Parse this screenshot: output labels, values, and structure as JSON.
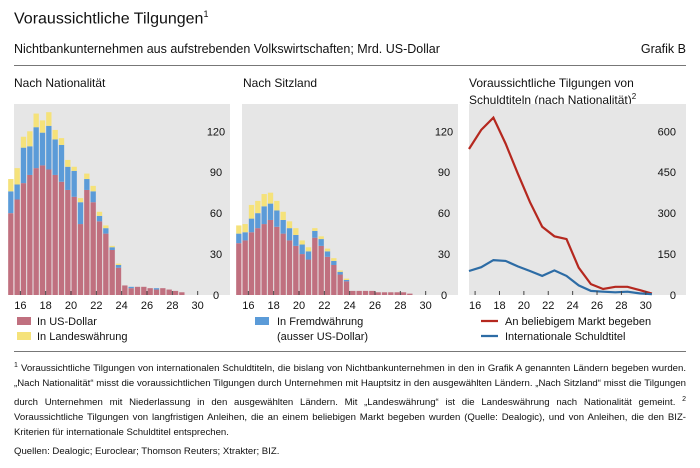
{
  "header": {
    "title": "Voraussichtliche Tilgungen",
    "title_sup": "1",
    "subtitle": "Nichtbankunternehmen aus aufstrebenden Volkswirtschaften; Mrd. US-Dollar",
    "grafik": "Grafik B"
  },
  "footnote": {
    "mark1": "1",
    "text1": "Voraussichtliche Tilgungen von internationalen Schuldtiteln, die bislang von Nichtbankunternehmen in den in Grafik A genannten Ländern begeben wurden. „Nach Nationalität“ misst die voraussichtlichen Tilgungen durch Unternehmen mit Hauptsitz in den ausgewählten Ländern. „Nach Sitzland“ misst die Tilgungen durch Unternehmen mit Niederlassung in den ausgewählten Ländern. Mit „Landeswährung“ ist die Landeswährung nach Nationalität gemeint.",
    "mark2": "2",
    "text2": "Voraussichtliche Tilgungen von langfristigen Anleihen, die an einem beliebigen Markt begeben wurden (Quelle: Dealogic), und von Anleihen, die den BIZ-Kriterien für internationale Schuldtitel entsprechen."
  },
  "sources": "Quellen: Dealogic; Euroclear; Thomson Reuters; Xtrakter; BIZ.",
  "colors": {
    "panel_bg": "#e6e6e6",
    "usd": "#c0707f",
    "local": "#f5e27a",
    "foreign": "#5b9bd8",
    "line_any": "#b5281f",
    "line_intl": "#2d6ca5"
  },
  "chart_data": [
    {
      "type": "bar",
      "stacked": true,
      "title": "Nach Nationalität",
      "x": [
        15,
        16,
        17,
        18,
        19,
        20,
        21,
        22,
        23,
        24,
        25,
        26,
        27,
        28,
        29,
        30
      ],
      "xticks": [
        "16",
        "18",
        "20",
        "22",
        "24",
        "26",
        "28",
        "30"
      ],
      "ylim": [
        0,
        140
      ],
      "yticks": [
        "0",
        "30",
        "60",
        "90",
        "120"
      ],
      "series": [
        {
          "name": "In US-Dollar",
          "half1": [
            60,
            82,
            93,
            92,
            83,
            72,
            77,
            54,
            33,
            7,
            6,
            5,
            5,
            3,
            0,
            0
          ],
          "half2": [
            70,
            88,
            95,
            88,
            77,
            52,
            68,
            45,
            20,
            5,
            6,
            4,
            4,
            2,
            0,
            0
          ]
        },
        {
          "name": "In Fremdwährung",
          "half1": [
            16,
            26,
            30,
            32,
            27,
            19,
            8,
            4,
            2,
            0,
            0,
            0,
            0,
            0,
            0,
            0
          ],
          "half2": [
            11,
            21,
            24,
            26,
            17,
            16,
            8,
            4,
            2,
            1,
            0,
            1,
            0,
            0,
            0,
            0
          ]
        },
        {
          "name": "In Landeswährung",
          "half1": [
            9,
            8,
            10,
            10,
            5,
            3,
            4,
            3,
            1,
            0,
            0,
            0,
            0,
            0,
            0,
            0
          ],
          "half2": [
            12,
            11,
            9,
            7,
            5,
            3,
            4,
            2,
            1,
            0,
            0,
            0,
            0,
            0,
            0,
            0
          ]
        }
      ],
      "legend": [
        "In US-Dollar",
        "In Landeswährung"
      ]
    },
    {
      "type": "bar",
      "stacked": true,
      "title": "Nach Sitzland",
      "x": [
        15,
        16,
        17,
        18,
        19,
        20,
        21,
        22,
        23,
        24,
        25,
        26,
        27,
        28,
        29,
        30
      ],
      "xticks": [
        "16",
        "18",
        "20",
        "22",
        "24",
        "26",
        "28",
        "30"
      ],
      "ylim": [
        0,
        140
      ],
      "yticks": [
        "0",
        "30",
        "60",
        "90",
        "120"
      ],
      "series": [
        {
          "name": "In US-Dollar",
          "half1": [
            38,
            46,
            52,
            50,
            40,
            30,
            42,
            28,
            15,
            3,
            3,
            2,
            2,
            2,
            0,
            0
          ],
          "half2": [
            40,
            49,
            55,
            45,
            36,
            26,
            36,
            22,
            10,
            3,
            3,
            2,
            2,
            1,
            0,
            0
          ]
        },
        {
          "name": "In Fremdwährung",
          "half1": [
            7,
            10,
            13,
            12,
            9,
            7,
            5,
            4,
            2,
            0,
            0,
            0,
            0,
            0,
            0,
            0
          ],
          "half2": [
            6,
            11,
            12,
            10,
            8,
            6,
            5,
            3,
            1,
            0,
            0,
            0,
            0,
            0,
            0,
            0
          ]
        },
        {
          "name": "In Landeswährung",
          "half1": [
            6,
            10,
            9,
            7,
            5,
            3,
            2,
            2,
            1,
            0,
            0,
            0,
            0,
            0,
            0,
            0
          ],
          "half2": [
            6,
            9,
            8,
            6,
            5,
            3,
            2,
            2,
            1,
            0,
            0,
            0,
            0,
            0,
            0,
            0
          ]
        }
      ],
      "legend": [
        "In Fremdwährung",
        "(ausser US-Dollar)"
      ]
    },
    {
      "type": "line",
      "title": "Voraussichtliche Tilgungen von Schuldtiteln (nach Nationalität)",
      "title_sup": "2",
      "xticks": [
        "16",
        "18",
        "20",
        "22",
        "24",
        "26",
        "28",
        "30"
      ],
      "ylim": [
        0,
        700
      ],
      "yticks": [
        "0",
        "150",
        "300",
        "450",
        "600"
      ],
      "series": [
        {
          "name": "An beliebigem Markt begeben",
          "x": [
            15.5,
            16.5,
            17.5,
            18.5,
            19.5,
            20.5,
            21.5,
            22.5,
            23.5,
            24.5,
            25.5,
            26.5,
            27.5,
            28.5,
            29.5,
            30.5
          ],
          "values": [
            535,
            605,
            650,
            555,
            445,
            340,
            250,
            215,
            205,
            100,
            40,
            22,
            30,
            30,
            18,
            5
          ]
        },
        {
          "name": "Internationale Schuldtitel",
          "x": [
            15.5,
            16.5,
            17.5,
            18.5,
            19.5,
            20.5,
            21.5,
            22.5,
            23.5,
            24.5,
            25.5,
            26.5,
            27.5,
            28.5,
            29.5,
            30.5
          ],
          "values": [
            88,
            102,
            128,
            125,
            105,
            88,
            70,
            90,
            70,
            35,
            15,
            12,
            10,
            12,
            6,
            3
          ]
        }
      ],
      "legend": [
        "An beliebigem Markt begeben",
        "Internationale Schuldtitel"
      ]
    }
  ]
}
